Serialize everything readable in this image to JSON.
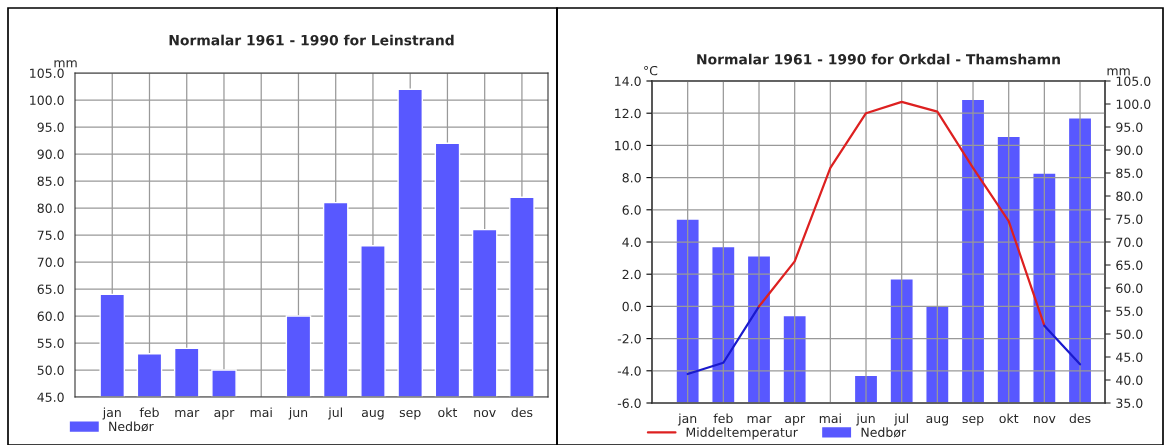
{
  "chart_data": [
    {
      "type": "bar",
      "title": "Normalar 1961 - 1990 for Leinstrand",
      "ylabel": "mm",
      "categories": [
        "jan",
        "feb",
        "mar",
        "apr",
        "mai",
        "jun",
        "jul",
        "aug",
        "sep",
        "okt",
        "nov",
        "des"
      ],
      "series": [
        {
          "name": "Nedbør",
          "color": "#5858ff",
          "values": [
            64,
            53,
            54,
            50,
            null,
            60,
            81,
            73,
            102,
            92,
            76,
            82
          ]
        }
      ],
      "ylim": [
        45,
        105
      ],
      "yticks": [
        {
          "value": 45,
          "label": "45.0"
        },
        {
          "value": 50,
          "label": "50.0"
        },
        {
          "value": 55,
          "label": "55.0"
        },
        {
          "value": 60,
          "label": "60.0"
        },
        {
          "value": 65,
          "label": "65.0"
        },
        {
          "value": 70,
          "label": "70.0"
        },
        {
          "value": 75,
          "label": "75.0"
        },
        {
          "value": 80,
          "label": "80.0"
        },
        {
          "value": 85,
          "label": "85.0"
        },
        {
          "value": 90,
          "label": "90.0"
        },
        {
          "value": 95,
          "label": "95.0"
        },
        {
          "value": 100,
          "label": "100.0"
        },
        {
          "value": 105,
          "label": "105.0"
        }
      ],
      "grid": true,
      "legend": "bottom left"
    },
    {
      "type": "bar",
      "title": "Normalar 1961 - 1990 for Orkdal - Thamshamn",
      "ylabel": "°C",
      "y2label": "mm",
      "categories": [
        "jan",
        "feb",
        "mar",
        "apr",
        "mai",
        "jun",
        "jul",
        "aug",
        "sep",
        "okt",
        "nov",
        "des"
      ],
      "series": [
        {
          "type": "line",
          "color": "#1a1acc",
          "values": [
            -4.2,
            -3.5,
            0.0,
            null,
            null,
            null,
            null,
            null,
            null,
            null,
            null,
            null
          ]
        },
        {
          "name": "Middeltemperatur",
          "type": "line",
          "color": "#dd2020",
          "values": [
            null,
            null,
            0.0,
            2.8,
            8.6,
            12.0,
            12.7,
            12.1,
            8.6,
            5.3,
            -1.2,
            null
          ]
        },
        {
          "type": "line",
          "color": "#1a1acc",
          "values": [
            null,
            null,
            null,
            null,
            null,
            null,
            null,
            null,
            null,
            null,
            -1.2,
            -3.6
          ]
        },
        {
          "name": "Nedbør",
          "type": "bar",
          "axis": "y2",
          "color": "#5858ff",
          "values": [
            75,
            69,
            67,
            54,
            null,
            41,
            62,
            56,
            101,
            93,
            85,
            97
          ]
        }
      ],
      "ylim": [
        -6,
        14
      ],
      "yticks": [
        {
          "value": -6,
          "label": "-6.0"
        },
        {
          "value": -4,
          "label": "-4.0"
        },
        {
          "value": -2,
          "label": "-2.0"
        },
        {
          "value": 0,
          "label": "0.0"
        },
        {
          "value": 2,
          "label": "2.0"
        },
        {
          "value": 4,
          "label": "4.0"
        },
        {
          "value": 6,
          "label": "6.0"
        },
        {
          "value": 8,
          "label": "8.0"
        },
        {
          "value": 10,
          "label": "10.0"
        },
        {
          "value": 12,
          "label": "12.0"
        },
        {
          "value": 14,
          "label": "14.0"
        }
      ],
      "y2lim": [
        35,
        105
      ],
      "y2ticks": [
        {
          "value": 35,
          "label": "35.0"
        },
        {
          "value": 40,
          "label": "40.0"
        },
        {
          "value": 45,
          "label": "45.0"
        },
        {
          "value": 50,
          "label": "50.0"
        },
        {
          "value": 55,
          "label": "55.0"
        },
        {
          "value": 60,
          "label": "60.0"
        },
        {
          "value": 65,
          "label": "65.0"
        },
        {
          "value": 70,
          "label": "70.0"
        },
        {
          "value": 75,
          "label": "75.0"
        },
        {
          "value": 80,
          "label": "80.0"
        },
        {
          "value": 85,
          "label": "85.0"
        },
        {
          "value": 90,
          "label": "90.0"
        },
        {
          "value": 95,
          "label": "95.0"
        },
        {
          "value": 100,
          "label": "100.0"
        },
        {
          "value": 105,
          "label": "105.0"
        }
      ],
      "grid": true,
      "legend": "bottom left"
    }
  ]
}
